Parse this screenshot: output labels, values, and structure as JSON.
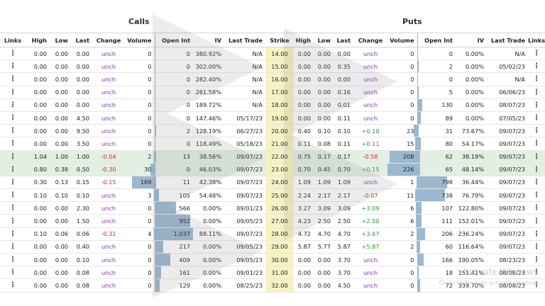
{
  "groups": {
    "calls": "Calls",
    "puts": "Puts"
  },
  "headers": [
    "Links",
    "High",
    "Low",
    "Last",
    "Change",
    "Volume",
    "Open Int",
    "IV",
    "Last Trade",
    "Strike",
    "High",
    "Low",
    "Last",
    "Change",
    "Volume",
    "Open Int",
    "IV",
    "Last Trade",
    "Links"
  ],
  "colors": {
    "unch": "#7b2fa8",
    "negative": "#d42a2a",
    "positive": "#1f9e37",
    "volume_bar": "#9bb8cf",
    "strike_bg": "#f6f3c2",
    "highlight_row": "#e3efe3"
  },
  "links_icon": "vertical-dots-icon",
  "rows": [
    {
      "call": {
        "high": "0.00",
        "low": "0.00",
        "last": "0.00",
        "change": "unch",
        "volume": "0",
        "open_int": "0",
        "iv": "380.92%",
        "last_trade": "N/A"
      },
      "strike": "14.00",
      "put": {
        "high": "0.00",
        "low": "0.00",
        "last": "0.00",
        "change": "unch",
        "volume": "0",
        "open_int": "0",
        "iv": "0.00%",
        "last_trade": "N/A"
      }
    },
    {
      "call": {
        "high": "0.00",
        "low": "0.00",
        "last": "0.00",
        "change": "unch",
        "volume": "0",
        "open_int": "0",
        "iv": "302.00%",
        "last_trade": "N/A"
      },
      "strike": "15.00",
      "put": {
        "high": "0.00",
        "low": "0.00",
        "last": "0.35",
        "change": "unch",
        "volume": "0",
        "open_int": "2",
        "iv": "0.00%",
        "last_trade": "05/02/23"
      }
    },
    {
      "call": {
        "high": "0.00",
        "low": "0.00",
        "last": "0.00",
        "change": "unch",
        "volume": "0",
        "open_int": "0",
        "iv": "282.40%",
        "last_trade": "N/A"
      },
      "strike": "16.00",
      "put": {
        "high": "0.00",
        "low": "0.00",
        "last": "0.00",
        "change": "unch",
        "volume": "0",
        "open_int": "0",
        "iv": "0.00%",
        "last_trade": "N/A"
      }
    },
    {
      "call": {
        "high": "0.00",
        "low": "0.00",
        "last": "0.00",
        "change": "unch",
        "volume": "0",
        "open_int": "0",
        "iv": "261.58%",
        "last_trade": "N/A"
      },
      "strike": "17.00",
      "put": {
        "high": "0.00",
        "low": "0.00",
        "last": "0.16",
        "change": "unch",
        "volume": "0",
        "open_int": "5",
        "iv": "0.00%",
        "last_trade": "06/06/23"
      }
    },
    {
      "call": {
        "high": "0.00",
        "low": "0.00",
        "last": "0.00",
        "change": "unch",
        "volume": "0",
        "open_int": "0",
        "iv": "189.72%",
        "last_trade": "N/A"
      },
      "strike": "18.00",
      "put": {
        "high": "0.00",
        "low": "0.00",
        "last": "0.01",
        "change": "unch",
        "volume": "0",
        "open_int": "130",
        "iv": "0.00%",
        "last_trade": "08/07/23"
      }
    },
    {
      "call": {
        "high": "0.00",
        "low": "0.00",
        "last": "4.50",
        "change": "unch",
        "volume": "0",
        "open_int": "0",
        "iv": "147.46%",
        "last_trade": "05/17/23"
      },
      "strike": "19.00",
      "put": {
        "high": "0.00",
        "low": "0.00",
        "last": "0.11",
        "change": "unch",
        "volume": "0",
        "open_int": "89",
        "iv": "0.00%",
        "last_trade": "07/05/23"
      }
    },
    {
      "call": {
        "high": "0.00",
        "low": "0.00",
        "last": "9.50",
        "change": "unch",
        "volume": "0",
        "open_int": "2",
        "iv": "128.19%",
        "last_trade": "06/27/23"
      },
      "strike": "20.00",
      "put": {
        "high": "0.40",
        "low": "0.10",
        "last": "0.10",
        "change": "+0.10",
        "volume": "23",
        "open_int": "31",
        "iv": "73.67%",
        "last_trade": "09/07/23"
      }
    },
    {
      "call": {
        "high": "0.00",
        "low": "0.00",
        "last": "3.50",
        "change": "unch",
        "volume": "0",
        "open_int": "0",
        "iv": "118.49%",
        "last_trade": "05/18/23"
      },
      "strike": "21.00",
      "put": {
        "high": "0.11",
        "low": "0.08",
        "last": "0.11",
        "change": "+0.11",
        "volume": "15",
        "open_int": "80",
        "iv": "54.17%",
        "last_trade": "09/07/23"
      }
    },
    {
      "call": {
        "high": "1.04",
        "low": "1.00",
        "last": "1.00",
        "change": "-0.04",
        "volume": "2",
        "open_int": "13",
        "iv": "38.56%",
        "last_trade": "09/07/23"
      },
      "strike": "22.00",
      "put": {
        "high": "0.75",
        "low": "0.17",
        "last": "0.17",
        "change": "-0.58",
        "volume": "208",
        "open_int": "62",
        "iv": "38.19%",
        "last_trade": "09/07/23"
      }
    },
    {
      "call": {
        "high": "0.80",
        "low": "0.38",
        "last": "0.50",
        "change": "-0.30",
        "volume": "30",
        "open_int": "0",
        "iv": "46.03%",
        "last_trade": "09/07/23"
      },
      "strike": "23.00",
      "put": {
        "high": "0.70",
        "low": "0.45",
        "last": "0.70",
        "change": "+0.15",
        "volume": "226",
        "open_int": "65",
        "iv": "48.14%",
        "last_trade": "09/07/23"
      }
    },
    {
      "call": {
        "high": "0.30",
        "low": "0.13",
        "last": "0.15",
        "change": "-0.15",
        "volume": "169",
        "open_int": "11",
        "iv": "42.38%",
        "last_trade": "09/07/23"
      },
      "strike": "24.00",
      "put": {
        "high": "1.09",
        "low": "1.09",
        "last": "1.09",
        "change": "unch",
        "volume": "1",
        "open_int": "798",
        "iv": "36.44%",
        "last_trade": "09/07/23"
      }
    },
    {
      "call": {
        "high": "0.10",
        "low": "0.10",
        "last": "0.10",
        "change": "unch",
        "volume": "3",
        "open_int": "105",
        "iv": "54.48%",
        "last_trade": "09/07/23"
      },
      "strike": "25.00",
      "put": {
        "high": "2.24",
        "low": "2.17",
        "last": "2.17",
        "change": "-0.07",
        "volume": "11",
        "open_int": "738",
        "iv": "76.79%",
        "last_trade": "09/07/23"
      }
    },
    {
      "call": {
        "high": "0.00",
        "low": "0.00",
        "last": "2.30",
        "change": "unch",
        "volume": "0",
        "open_int": "566",
        "iv": "0.00%",
        "last_trade": "09/01/23"
      },
      "strike": "26.00",
      "put": {
        "high": "3.27",
        "low": "3.09",
        "last": "3.09",
        "change": "+3.09",
        "volume": "6",
        "open_int": "107",
        "iv": "122.80%",
        "last_trade": "09/07/23"
      }
    },
    {
      "call": {
        "high": "0.00",
        "low": "0.00",
        "last": "1.50",
        "change": "unch",
        "volume": "0",
        "open_int": "952",
        "iv": "0.00%",
        "last_trade": "09/05/23"
      },
      "strike": "27.00",
      "put": {
        "high": "4.23",
        "low": "2.50",
        "last": "2.50",
        "change": "+2.50",
        "volume": "6",
        "open_int": "111",
        "iv": "152.01%",
        "last_trade": "09/07/23"
      }
    },
    {
      "call": {
        "high": "0.10",
        "low": "0.06",
        "last": "0.06",
        "change": "-0.31",
        "volume": "4",
        "open_int": "1,037",
        "iv": "88.11%",
        "last_trade": "09/07/23"
      },
      "strike": "28.00",
      "put": {
        "high": "4.72",
        "low": "4.70",
        "last": "4.70",
        "change": "+3.67",
        "volume": "2",
        "open_int": "206",
        "iv": "236.24%",
        "last_trade": "09/07/23"
      }
    },
    {
      "call": {
        "high": "0.00",
        "low": "0.00",
        "last": "0.40",
        "change": "unch",
        "volume": "0",
        "open_int": "217",
        "iv": "0.00%",
        "last_trade": "09/05/23"
      },
      "strike": "29.00",
      "put": {
        "high": "5.87",
        "low": "5.77",
        "last": "5.87",
        "change": "+5.87",
        "volume": "2",
        "open_int": "60",
        "iv": "116.64%",
        "last_trade": "09/07/23"
      }
    },
    {
      "call": {
        "high": "0.00",
        "low": "0.00",
        "last": "0.10",
        "change": "unch",
        "volume": "0",
        "open_int": "409",
        "iv": "0.00%",
        "last_trade": "09/05/23"
      },
      "strike": "30.00",
      "put": {
        "high": "0.00",
        "low": "0.00",
        "last": "3.70",
        "change": "unch",
        "volume": "0",
        "open_int": "166",
        "iv": "190.05%",
        "last_trade": "08/23/23"
      }
    },
    {
      "call": {
        "high": "0.00",
        "low": "0.00",
        "last": "0.08",
        "change": "unch",
        "volume": "0",
        "open_int": "161",
        "iv": "0.00%",
        "last_trade": "09/01/23"
      },
      "strike": "31.00",
      "put": {
        "high": "0.00",
        "low": "0.00",
        "last": "3.70",
        "change": "unch",
        "volume": "0",
        "open_int": "18",
        "iv": "151.41%",
        "last_trade": "08/08/23"
      }
    },
    {
      "call": {
        "high": "0.00",
        "low": "0.00",
        "last": "0.08",
        "change": "unch",
        "volume": "0",
        "open_int": "129",
        "iv": "0.00%",
        "last_trade": "08/25/23"
      },
      "strike": "32.00",
      "put": {
        "high": "0.00",
        "low": "0.00",
        "last": "4.50",
        "change": "unch",
        "volume": "0",
        "open_int": "72",
        "iv": "339.70%",
        "last_trade": "08/08/23"
      }
    }
  ],
  "highlighted_strikes": [
    "22.00",
    "23.00"
  ],
  "watermark": {
    "title": "Activate Windows",
    "subtitle": "Go to Settings to activate Windows."
  }
}
